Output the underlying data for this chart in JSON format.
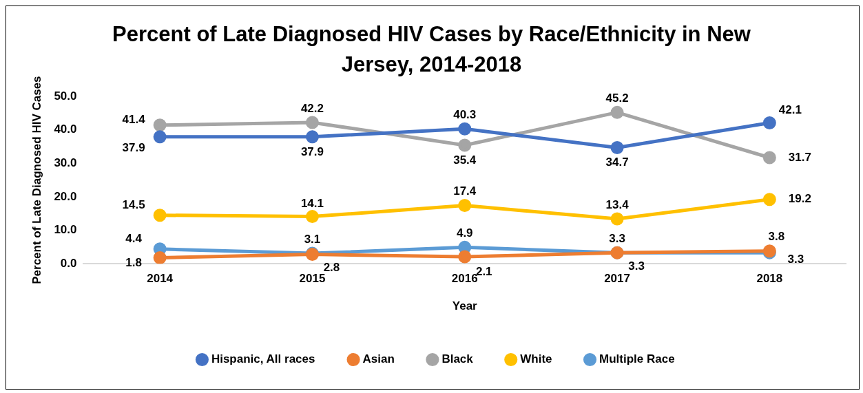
{
  "chart_data": {
    "type": "line",
    "title": "Percent of Late Diagnosed HIV Cases by Race/Ethnicity in New Jersey, 2014-2018",
    "xlabel": "Year",
    "ylabel": "Percent of Late Diagnosed HIV Cases",
    "categories": [
      "2014",
      "2015",
      "2016",
      "2017",
      "2018"
    ],
    "series": [
      {
        "name": "Hispanic, All races",
        "color": "#4472c4",
        "values": [
          37.9,
          37.9,
          40.3,
          34.7,
          42.1
        ]
      },
      {
        "name": "Asian",
        "color": "#ed7d31",
        "values": [
          1.8,
          2.8,
          2.1,
          3.3,
          3.8
        ]
      },
      {
        "name": "Black",
        "color": "#a5a5a5",
        "values": [
          41.4,
          42.2,
          35.4,
          45.2,
          31.7
        ]
      },
      {
        "name": "White",
        "color": "#ffc000",
        "values": [
          14.5,
          14.1,
          17.4,
          13.4,
          19.2
        ]
      },
      {
        "name": "Multiple Race",
        "color": "#5b9bd5",
        "values": [
          4.4,
          3.1,
          4.9,
          3.3,
          3.3
        ]
      }
    ],
    "ylim": [
      0,
      50
    ],
    "yticks": [
      {
        "value": 0,
        "label": "0.0"
      },
      {
        "value": 10,
        "label": "10.0"
      },
      {
        "value": 20,
        "label": "20.0"
      },
      {
        "value": 30,
        "label": "30.0"
      },
      {
        "value": 40,
        "label": "40.0"
      },
      {
        "value": 50,
        "label": "50.0"
      }
    ],
    "grid": false,
    "legend": "bottom",
    "marker": "circle",
    "line_style": "solid",
    "data_labels": true
  }
}
